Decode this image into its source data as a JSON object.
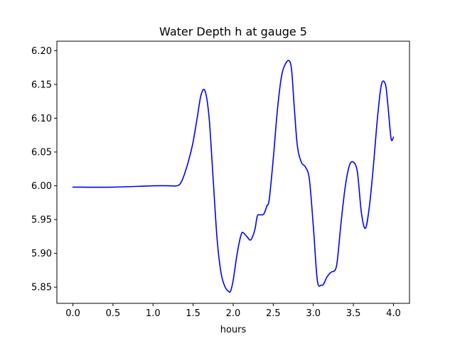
{
  "chart_data": {
    "type": "line",
    "title": "Water Depth h at gauge 5",
    "xlabel": "hours",
    "ylabel": "",
    "xlim": [
      -0.2,
      4.2
    ],
    "ylim": [
      5.826,
      6.214
    ],
    "x_ticks": [
      0.0,
      0.5,
      1.0,
      1.5,
      2.0,
      2.5,
      3.0,
      3.5,
      4.0
    ],
    "x_tick_labels": [
      "0.0",
      "0.5",
      "1.0",
      "1.5",
      "2.0",
      "2.5",
      "3.0",
      "3.5",
      "4.0"
    ],
    "y_ticks": [
      5.85,
      5.9,
      5.95,
      6.0,
      6.05,
      6.1,
      6.15,
      6.2
    ],
    "y_tick_labels": [
      "5.85",
      "5.90",
      "5.95",
      "6.00",
      "6.05",
      "6.10",
      "6.15",
      "6.20"
    ],
    "grid": false,
    "series": [
      {
        "color": "#0000ff",
        "x": [
          0.0,
          0.5,
          1.0,
          1.2,
          1.3,
          1.35,
          1.4,
          1.45,
          1.5,
          1.55,
          1.6,
          1.65,
          1.7,
          1.75,
          1.8,
          1.85,
          1.9,
          1.95,
          1.97,
          2.0,
          2.05,
          2.1,
          2.13,
          2.17,
          2.22,
          2.27,
          2.3,
          2.33,
          2.38,
          2.42,
          2.45,
          2.5,
          2.55,
          2.6,
          2.65,
          2.7,
          2.73,
          2.76,
          2.8,
          2.85,
          2.9,
          2.95,
          3.0,
          3.05,
          3.1,
          3.13,
          3.17,
          3.22,
          3.27,
          3.3,
          3.35,
          3.4,
          3.45,
          3.5,
          3.55,
          3.6,
          3.65,
          3.7,
          3.75,
          3.8,
          3.85,
          3.9,
          3.93,
          3.97,
          4.0
        ],
        "y": [
          5.998,
          5.998,
          6.0,
          6.0,
          6.0,
          6.005,
          6.02,
          6.04,
          6.065,
          6.1,
          6.135,
          6.14,
          6.1,
          6.01,
          5.92,
          5.87,
          5.85,
          5.843,
          5.845,
          5.86,
          5.9,
          5.928,
          5.93,
          5.925,
          5.92,
          5.935,
          5.955,
          5.957,
          5.958,
          5.97,
          5.98,
          6.04,
          6.11,
          6.16,
          6.18,
          6.185,
          6.17,
          6.12,
          6.06,
          6.035,
          6.028,
          6.01,
          5.94,
          5.86,
          5.853,
          5.855,
          5.865,
          5.872,
          5.875,
          5.89,
          5.95,
          6.0,
          6.03,
          6.035,
          6.02,
          5.96,
          5.937,
          5.97,
          6.03,
          6.1,
          6.15,
          6.15,
          6.12,
          6.07,
          6.072
        ]
      }
    ]
  }
}
